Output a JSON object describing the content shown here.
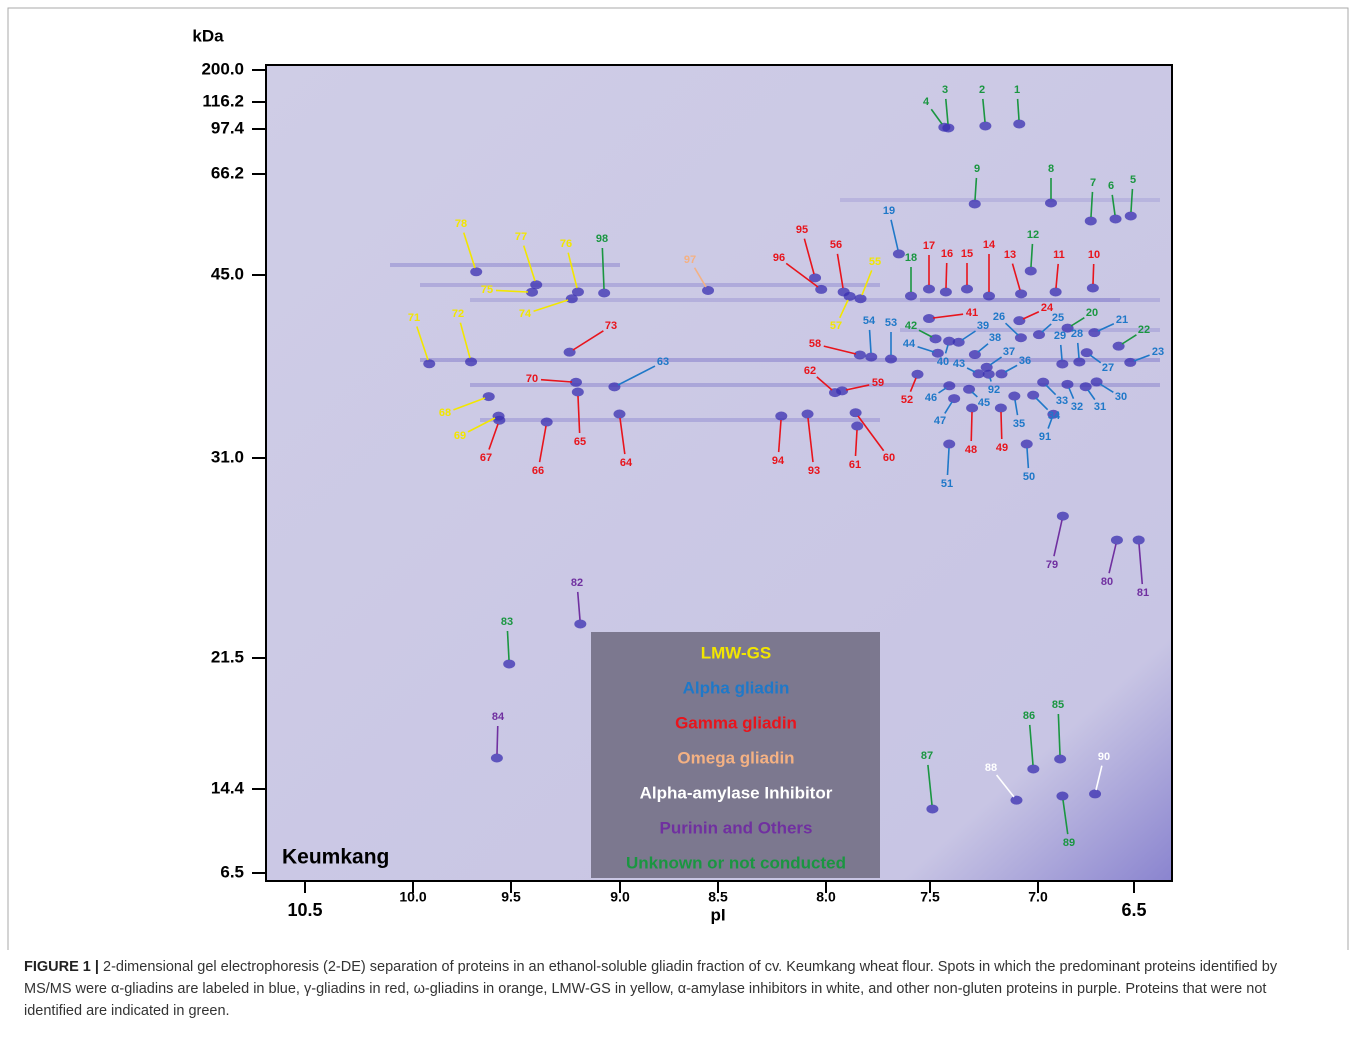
{
  "figure": {
    "y_axis_title": "kDa",
    "y_ticks": [
      "200.0",
      "116.2",
      "97.4",
      "66.2",
      "45.0",
      "31.0",
      "21.5",
      "14.4",
      "6.5"
    ],
    "x_ticks": [
      "10.5",
      "10.0",
      "9.5",
      "9.0",
      "8.5",
      "8.0",
      "7.5",
      "7.0",
      "6.5"
    ],
    "x_axis_title": "pI",
    "sample": "Keumkang",
    "legend": [
      {
        "label": "LMW-GS",
        "color": "#f2e600"
      },
      {
        "label": "Alpha gliadin",
        "color": "#1f78c8"
      },
      {
        "label": "Gamma gliadin",
        "color": "#e8141c"
      },
      {
        "label": "Omega gliadin",
        "color": "#f4b183"
      },
      {
        "label": "Alpha-amylase Inhibitor",
        "color": "#ffffff"
      },
      {
        "label": "Purinin and Others",
        "color": "#7030a0"
      },
      {
        "label": "Unknown or not conducted",
        "color": "#1a9641"
      }
    ],
    "spots": [
      {
        "label": "1",
        "color": "#1a9641"
      },
      {
        "label": "2",
        "color": "#1a9641"
      },
      {
        "label": "3",
        "color": "#1a9641"
      },
      {
        "label": "4",
        "color": "#1a9641"
      },
      {
        "label": "5",
        "color": "#1a9641"
      },
      {
        "label": "6",
        "color": "#1a9641"
      },
      {
        "label": "7",
        "color": "#1a9641"
      },
      {
        "label": "8",
        "color": "#1a9641"
      },
      {
        "label": "9",
        "color": "#1a9641"
      },
      {
        "label": "12",
        "color": "#1a9641"
      },
      {
        "label": "18",
        "color": "#1a9641"
      },
      {
        "label": "20",
        "color": "#1a9641"
      },
      {
        "label": "22",
        "color": "#1a9641"
      },
      {
        "label": "42",
        "color": "#1a9641"
      },
      {
        "label": "83",
        "color": "#1a9641"
      },
      {
        "label": "85",
        "color": "#1a9641"
      },
      {
        "label": "86",
        "color": "#1a9641"
      },
      {
        "label": "87",
        "color": "#1a9641"
      },
      {
        "label": "89",
        "color": "#1a9641"
      },
      {
        "label": "98",
        "color": "#1a9641"
      },
      {
        "label": "78",
        "color": "#f2e600"
      },
      {
        "label": "77",
        "color": "#f2e600"
      },
      {
        "label": "76",
        "color": "#f2e600"
      },
      {
        "label": "75",
        "color": "#f2e600"
      },
      {
        "label": "74",
        "color": "#f2e600"
      },
      {
        "label": "71",
        "color": "#f2e600"
      },
      {
        "label": "72",
        "color": "#f2e600"
      },
      {
        "label": "68",
        "color": "#f2e600"
      },
      {
        "label": "69",
        "color": "#f2e600"
      },
      {
        "label": "55",
        "color": "#f2e600"
      },
      {
        "label": "57",
        "color": "#f2e600"
      },
      {
        "label": "19",
        "color": "#1f78c8"
      },
      {
        "label": "21",
        "color": "#1f78c8"
      },
      {
        "label": "23",
        "color": "#1f78c8"
      },
      {
        "label": "25",
        "color": "#1f78c8"
      },
      {
        "label": "26",
        "color": "#1f78c8"
      },
      {
        "label": "27",
        "color": "#1f78c8"
      },
      {
        "label": "28",
        "color": "#1f78c8"
      },
      {
        "label": "29",
        "color": "#1f78c8"
      },
      {
        "label": "30",
        "color": "#1f78c8"
      },
      {
        "label": "31",
        "color": "#1f78c8"
      },
      {
        "label": "32",
        "color": "#1f78c8"
      },
      {
        "label": "33",
        "color": "#1f78c8"
      },
      {
        "label": "34",
        "color": "#1f78c8"
      },
      {
        "label": "35",
        "color": "#1f78c8"
      },
      {
        "label": "36",
        "color": "#1f78c8"
      },
      {
        "label": "37",
        "color": "#1f78c8"
      },
      {
        "label": "38",
        "color": "#1f78c8"
      },
      {
        "label": "39",
        "color": "#1f78c8"
      },
      {
        "label": "40",
        "color": "#1f78c8"
      },
      {
        "label": "43",
        "color": "#1f78c8"
      },
      {
        "label": "44",
        "color": "#1f78c8"
      },
      {
        "label": "45",
        "color": "#1f78c8"
      },
      {
        "label": "46",
        "color": "#1f78c8"
      },
      {
        "label": "47",
        "color": "#1f78c8"
      },
      {
        "label": "50",
        "color": "#1f78c8"
      },
      {
        "label": "51",
        "color": "#1f78c8"
      },
      {
        "label": "53",
        "color": "#1f78c8"
      },
      {
        "label": "54",
        "color": "#1f78c8"
      },
      {
        "label": "63",
        "color": "#1f78c8"
      },
      {
        "label": "91",
        "color": "#1f78c8"
      },
      {
        "label": "92",
        "color": "#1f78c8"
      },
      {
        "label": "10",
        "color": "#e8141c"
      },
      {
        "label": "11",
        "color": "#e8141c"
      },
      {
        "label": "13",
        "color": "#e8141c"
      },
      {
        "label": "14",
        "color": "#e8141c"
      },
      {
        "label": "15",
        "color": "#e8141c"
      },
      {
        "label": "16",
        "color": "#e8141c"
      },
      {
        "label": "17",
        "color": "#e8141c"
      },
      {
        "label": "24",
        "color": "#e8141c"
      },
      {
        "label": "41",
        "color": "#e8141c"
      },
      {
        "label": "48",
        "color": "#e8141c"
      },
      {
        "label": "49",
        "color": "#e8141c"
      },
      {
        "label": "52",
        "color": "#e8141c"
      },
      {
        "label": "56",
        "color": "#e8141c"
      },
      {
        "label": "58",
        "color": "#e8141c"
      },
      {
        "label": "59",
        "color": "#e8141c"
      },
      {
        "label": "60",
        "color": "#e8141c"
      },
      {
        "label": "61",
        "color": "#e8141c"
      },
      {
        "label": "62",
        "color": "#e8141c"
      },
      {
        "label": "64",
        "color": "#e8141c"
      },
      {
        "label": "65",
        "color": "#e8141c"
      },
      {
        "label": "66",
        "color": "#e8141c"
      },
      {
        "label": "67",
        "color": "#e8141c"
      },
      {
        "label": "70",
        "color": "#e8141c"
      },
      {
        "label": "73",
        "color": "#e8141c"
      },
      {
        "label": "93",
        "color": "#e8141c"
      },
      {
        "label": "94",
        "color": "#e8141c"
      },
      {
        "label": "95",
        "color": "#e8141c"
      },
      {
        "label": "96",
        "color": "#e8141c"
      },
      {
        "label": "97",
        "color": "#f4b183"
      },
      {
        "label": "88",
        "color": "#ffffff"
      },
      {
        "label": "90",
        "color": "#ffffff"
      },
      {
        "label": "79",
        "color": "#7030a0"
      },
      {
        "label": "80",
        "color": "#7030a0"
      },
      {
        "label": "81",
        "color": "#7030a0"
      },
      {
        "label": "82",
        "color": "#7030a0"
      },
      {
        "label": "84",
        "color": "#7030a0"
      }
    ],
    "caption_label": "FIGURE 1 |",
    "caption_text": "2-dimensional gel electrophoresis (2-DE) separation of proteins in an ethanol-soluble gliadin fraction of cv. Keumkang wheat flour. Spots in which the predominant proteins identified by MS/MS were α-gliadins are labeled in blue, γ-gliadins in red, ω-gliadins in orange, LMW-GS in yellow, α-amylase inhibitors in white, and other non-gluten proteins in purple. Proteins that were not identified are indicated in green."
  }
}
